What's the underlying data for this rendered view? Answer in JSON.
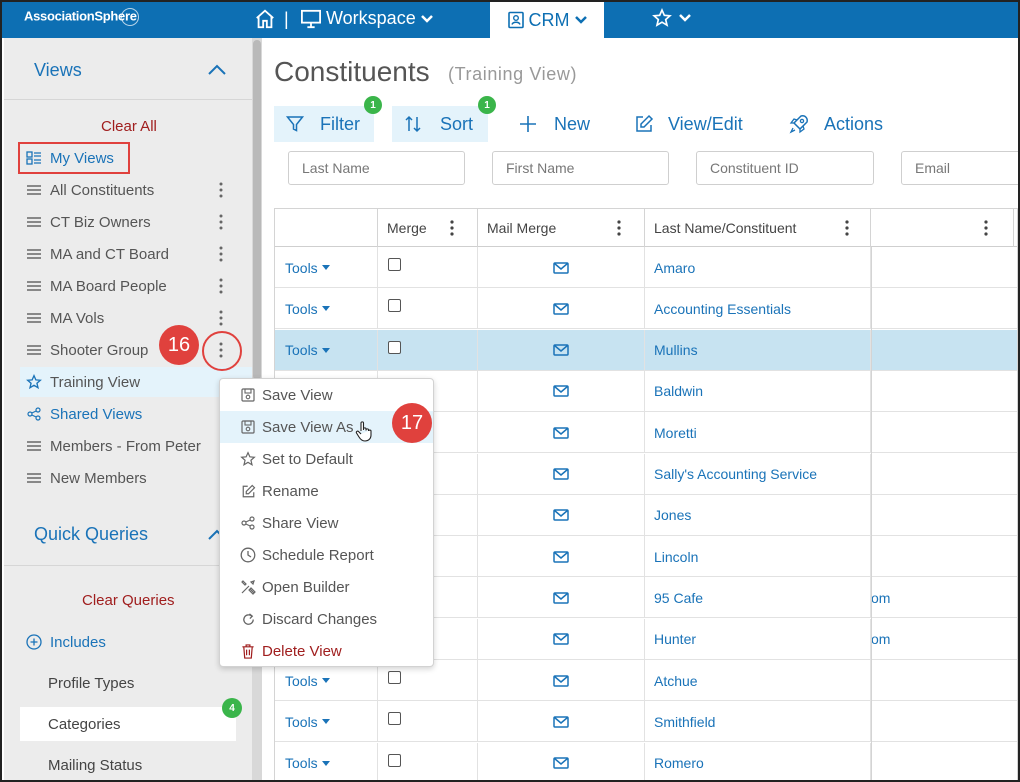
{
  "app": {
    "logo_text": "AssociationSphere",
    "nav": {
      "separator": "|",
      "workspace_label": "Workspace",
      "crm_label": "CRM"
    }
  },
  "sidebar": {
    "views_title": "Views",
    "clear_all": "Clear All",
    "my_views": "My Views",
    "items": [
      {
        "label": "All Constituents"
      },
      {
        "label": "CT Biz Owners"
      },
      {
        "label": "MA and CT Board"
      },
      {
        "label": "MA Board People"
      },
      {
        "label": "MA Vols"
      },
      {
        "label": "Shooter Group"
      }
    ],
    "training_view": "Training View",
    "shared_views": "Shared Views",
    "shared_items": [
      {
        "label": "Members - From Peter"
      },
      {
        "label": "New Members"
      }
    ],
    "quick_queries_title": "Quick Queries",
    "clear_queries": "Clear Queries",
    "includes": "Includes",
    "qq_items": [
      {
        "label": "Profile Types"
      },
      {
        "label": "Categories",
        "badge": "4"
      },
      {
        "label": "Mailing Status"
      }
    ]
  },
  "main": {
    "title": "Constituents",
    "subtitle": "(Training View)",
    "toolbar": {
      "filter": "Filter",
      "filter_badge": "1",
      "sort": "Sort",
      "sort_badge": "1",
      "new": "New",
      "view_edit": "View/Edit",
      "actions": "Actions"
    },
    "search": {
      "last_name": "Last Name",
      "first_name": "First Name",
      "constituent_id": "Constituent ID",
      "email": "Email"
    },
    "columns": {
      "merge": "Merge",
      "mail_merge": "Mail Merge",
      "last_name": "Last Name/Constituent"
    },
    "tools_label": "Tools",
    "rows": [
      {
        "name": "Amaro",
        "extra": ""
      },
      {
        "name": "Accounting Essentials",
        "extra": ""
      },
      {
        "name": "Mullins",
        "extra": ""
      },
      {
        "name": "Baldwin",
        "extra": ""
      },
      {
        "name": "Moretti",
        "extra": ""
      },
      {
        "name": "Sally's Accounting Service",
        "extra": ""
      },
      {
        "name": "Jones",
        "extra": ""
      },
      {
        "name": "Lincoln",
        "extra": ""
      },
      {
        "name": "95 Cafe",
        "extra": "om"
      },
      {
        "name": "Hunter",
        "extra": "om"
      },
      {
        "name": "Atchue",
        "extra": ""
      },
      {
        "name": "Smithfield",
        "extra": ""
      },
      {
        "name": "Romero",
        "extra": ""
      }
    ]
  },
  "context_menu": {
    "items": [
      {
        "label": "Save View"
      },
      {
        "label": "Save View As"
      },
      {
        "label": "Set to Default"
      },
      {
        "label": "Rename"
      },
      {
        "label": "Share View"
      },
      {
        "label": "Schedule Report"
      },
      {
        "label": "Open Builder"
      },
      {
        "label": "Discard Changes"
      },
      {
        "label": "Delete View"
      }
    ]
  },
  "callouts": {
    "step_16": "16",
    "step_17": "17"
  },
  "colors": {
    "brand_blue": "#0d6fb3",
    "link_blue": "#1a73b8",
    "danger_red": "#a01e1e",
    "callout_red": "#e0413d",
    "badge_green": "#3ab54a",
    "selected_row": "#c7e3f1"
  }
}
